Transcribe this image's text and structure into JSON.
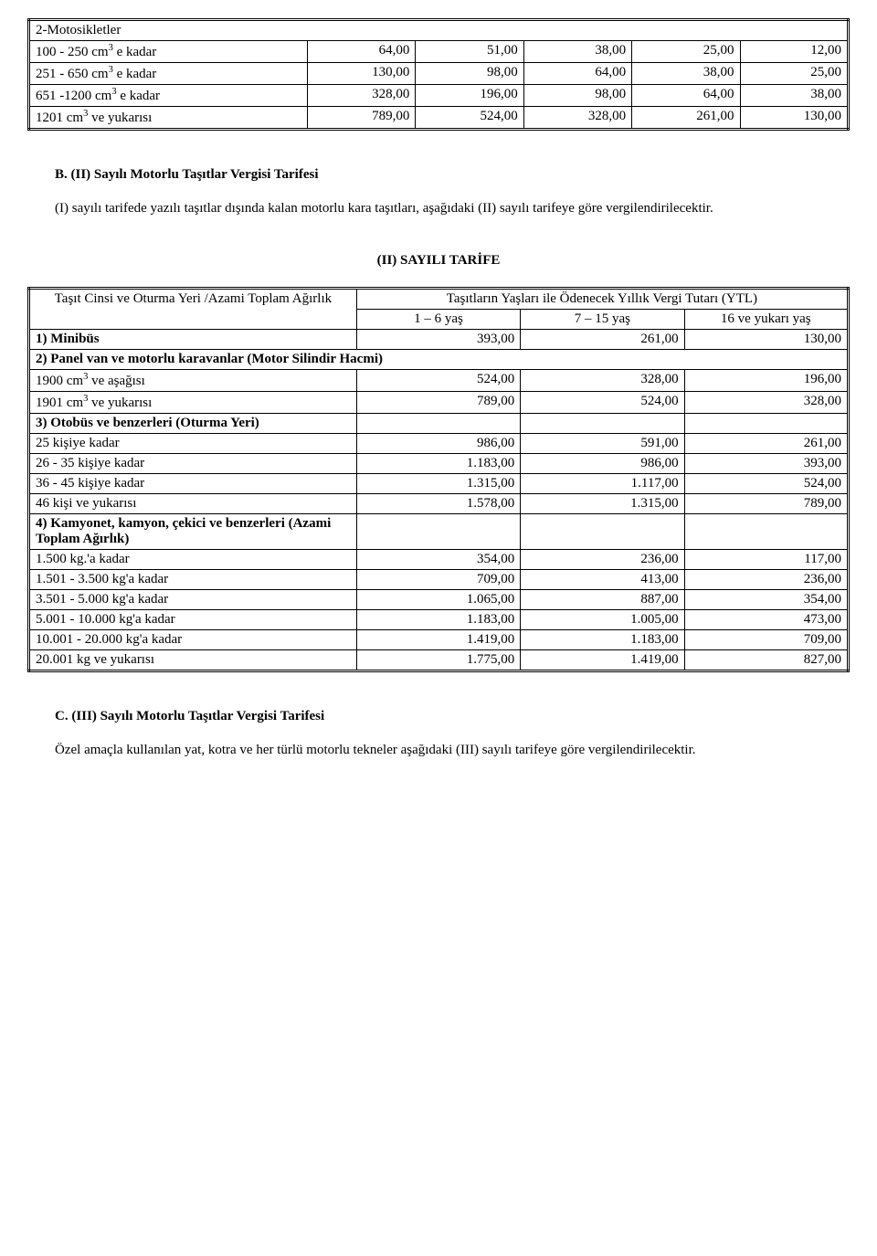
{
  "table1": {
    "header_row": "2-Motosikletler",
    "rows": [
      {
        "label_html": "100 -  250 cm<sup>3</sup> e kadar",
        "c1": "64,00",
        "c2": "51,00",
        "c3": "38,00",
        "c4": "25,00",
        "c5": "12,00"
      },
      {
        "label_html": "251 -  650 cm<sup>3</sup> e kadar",
        "c1": "130,00",
        "c2": "98,00",
        "c3": "64,00",
        "c4": "38,00",
        "c5": "25,00"
      },
      {
        "label_html": "651 -1200 cm<sup>3</sup> e kadar",
        "c1": "328,00",
        "c2": "196,00",
        "c3": "98,00",
        "c4": "64,00",
        "c5": "38,00"
      },
      {
        "label_html": "1201 cm<sup>3</sup> ve yukarısı",
        "c1": "789,00",
        "c2": "524,00",
        "c3": "328,00",
        "c4": "261,00",
        "c5": "130,00"
      }
    ]
  },
  "sectionB": {
    "heading": "B. (II) Sayılı Motorlu Taşıtlar Vergisi Tarifesi",
    "body": "(I) sayılı tarifede yazılı taşıtlar dışında kalan motorlu kara taşıtları, aşağıdaki (II) sayılı tarifeye göre vergilendirilecektir."
  },
  "table2": {
    "title": "(II)  SAYILI TARİFE",
    "col0": "Taşıt Cinsi ve Oturma Yeri /Azami Toplam Ağırlık",
    "col_group": "Taşıtların Yaşları ile Ödenecek Yıllık Vergi Tutarı (YTL)",
    "col1": "1 – 6 yaş",
    "col2": "7 – 15 yaş",
    "col3": "16 ve yukarı yaş",
    "rows": [
      {
        "type": "data",
        "label": "1) Minibüs",
        "bold": true,
        "c1": "393,00",
        "c2": "261,00",
        "c3": "130,00"
      },
      {
        "type": "span",
        "label": "2) Panel van ve motorlu karavanlar (Motor Silindir Hacmi)",
        "bold": true
      },
      {
        "type": "data",
        "label_html": "1900 cm<sup>3</sup> ve aşağısı",
        "c1": "524,00",
        "c2": "328,00",
        "c3": "196,00"
      },
      {
        "type": "data",
        "label_html": "1901 cm<sup>3</sup> ve yukarısı",
        "c1": "789,00",
        "c2": "524,00",
        "c3": "328,00"
      },
      {
        "type": "data",
        "label": "3) Otobüs ve benzerleri (Oturma Yeri)",
        "bold": true,
        "c1": "",
        "c2": "",
        "c3": ""
      },
      {
        "type": "data",
        "label": "25 kişiye kadar",
        "c1": "986,00",
        "c2": "591,00",
        "c3": "261,00"
      },
      {
        "type": "data",
        "label": "26 - 35  kişiye kadar",
        "c1": "1.183,00",
        "c2": "986,00",
        "c3": "393,00"
      },
      {
        "type": "data",
        "label": "36 - 45  kişiye kadar",
        "c1": "1.315,00",
        "c2": "1.117,00",
        "c3": "524,00"
      },
      {
        "type": "data",
        "label": "46 kişi ve yukarısı",
        "c1": "1.578,00",
        "c2": "1.315,00",
        "c3": "789,00"
      },
      {
        "type": "data",
        "label": "4) Kamyonet, kamyon, çekici ve benzerleri (Azami Toplam Ağırlık)",
        "bold": true,
        "c1": "",
        "c2": "",
        "c3": ""
      },
      {
        "type": "data",
        "label": "  1.500 kg.'a kadar",
        "c1": "354,00",
        "c2": "236,00",
        "c3": "117,00"
      },
      {
        "type": "data",
        "label": "  1.501 -  3.500  kg'a kadar",
        "c1": "709,00",
        "c2": "413,00",
        "c3": "236,00"
      },
      {
        "type": "data",
        "label": "  3.501 -  5.000  kg'a kadar",
        "c1": "1.065,00",
        "c2": "887,00",
        "c3": "354,00"
      },
      {
        "type": "data",
        "label": "  5.001 - 10.000  kg'a kadar",
        "c1": "1.183,00",
        "c2": "1.005,00",
        "c3": "473,00"
      },
      {
        "type": "data",
        "label": "10.001 - 20.000  kg'a kadar",
        "c1": "1.419,00",
        "c2": "1.183,00",
        "c3": "709,00"
      },
      {
        "type": "data",
        "label": "20.001 kg ve yukarısı",
        "c1": "1.775,00",
        "c2": "1.419,00",
        "c3": "827,00"
      }
    ]
  },
  "sectionC": {
    "heading": "C. (III) Sayılı Motorlu Taşıtlar Vergisi Tarifesi",
    "body": "Özel amaçla kullanılan yat, kotra ve her türlü motorlu tekneler aşağıdaki (III) sayılı tarifeye göre vergilendirilecektir."
  }
}
